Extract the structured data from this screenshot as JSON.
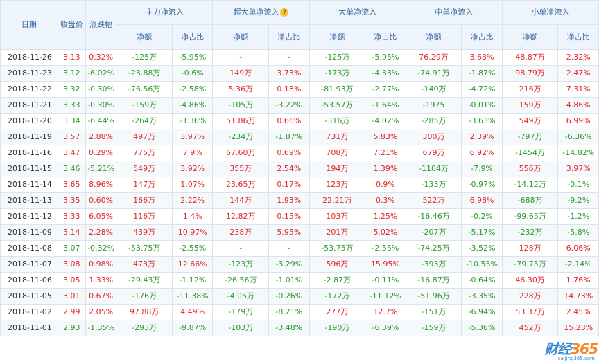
{
  "headers": {
    "date": "日期",
    "close": "收盘价",
    "change": "涨跌幅",
    "groups": [
      "主力净流入",
      "超大单净流入",
      "大单净流入",
      "中单净流入",
      "小单净流入"
    ],
    "amount": "净额",
    "ratio": "净占比",
    "help_glyph": "?"
  },
  "rows": [
    [
      "2018-11-26",
      "3.13",
      "0.32%",
      "-125万",
      "-5.95%",
      "-",
      "-",
      "-125万",
      "-5.95%",
      "76.29万",
      "3.63%",
      "48.87万",
      "2.32%"
    ],
    [
      "2018-11-23",
      "3.12",
      "-6.02%",
      "-23.88万",
      "-0.6%",
      "149万",
      "3.73%",
      "-173万",
      "-4.33%",
      "-74.91万",
      "-1.87%",
      "98.79万",
      "2.47%"
    ],
    [
      "2018-11-22",
      "3.32",
      "-0.30%",
      "-76.56万",
      "-2.58%",
      "5.36万",
      "0.18%",
      "-81.93万",
      "-2.77%",
      "-140万",
      "-4.72%",
      "216万",
      "7.31%"
    ],
    [
      "2018-11-21",
      "3.33",
      "-0.30%",
      "-159万",
      "-4.86%",
      "-105万",
      "-3.22%",
      "-53.57万",
      "-1.64%",
      "-1975",
      "-0.01%",
      "159万",
      "4.86%"
    ],
    [
      "2018-11-20",
      "3.34",
      "-6.44%",
      "-264万",
      "-3.36%",
      "51.86万",
      "0.66%",
      "-316万",
      "-4.02%",
      "-285万",
      "-3.63%",
      "549万",
      "6.99%"
    ],
    [
      "2018-11-19",
      "3.57",
      "2.88%",
      "497万",
      "3.97%",
      "-234万",
      "-1.87%",
      "731万",
      "5.83%",
      "300万",
      "2.39%",
      "-797万",
      "-6.36%"
    ],
    [
      "2018-11-16",
      "3.47",
      "0.29%",
      "775万",
      "7.9%",
      "67.60万",
      "0.69%",
      "708万",
      "7.21%",
      "679万",
      "6.92%",
      "-1454万",
      "-14.82%"
    ],
    [
      "2018-11-15",
      "3.46",
      "-5.21%",
      "549万",
      "3.92%",
      "355万",
      "2.54%",
      "194万",
      "1.39%",
      "-1104万",
      "-7.9%",
      "556万",
      "3.97%"
    ],
    [
      "2018-11-14",
      "3.65",
      "8.96%",
      "147万",
      "1.07%",
      "23.65万",
      "0.17%",
      "123万",
      "0.9%",
      "-133万",
      "-0.97%",
      "-14.12万",
      "-0.1%"
    ],
    [
      "2018-11-13",
      "3.35",
      "0.60%",
      "166万",
      "2.22%",
      "144万",
      "1.93%",
      "22.21万",
      "0.3%",
      "522万",
      "6.98%",
      "-688万",
      "-9.2%"
    ],
    [
      "2018-11-12",
      "3.33",
      "6.05%",
      "116万",
      "1.4%",
      "12.82万",
      "0.15%",
      "103万",
      "1.25%",
      "-16.46万",
      "-0.2%",
      "-99.65万",
      "-1.2%"
    ],
    [
      "2018-11-09",
      "3.14",
      "2.28%",
      "439万",
      "10.97%",
      "238万",
      "5.95%",
      "201万",
      "5.02%",
      "-207万",
      "-5.17%",
      "-232万",
      "-5.8%"
    ],
    [
      "2018-11-08",
      "3.07",
      "-0.32%",
      "-53.75万",
      "-2.55%",
      "-",
      "-",
      "-53.75万",
      "-2.55%",
      "-74.25万",
      "-3.52%",
      "128万",
      "6.06%"
    ],
    [
      "2018-11-07",
      "3.08",
      "0.98%",
      "473万",
      "12.66%",
      "-123万",
      "-3.29%",
      "596万",
      "15.95%",
      "-393万",
      "-10.53%",
      "-79.75万",
      "-2.14%"
    ],
    [
      "2018-11-06",
      "3.05",
      "1.33%",
      "-29.43万",
      "-1.12%",
      "-26.56万",
      "-1.01%",
      "-2.87万",
      "-0.11%",
      "-16.87万",
      "-0.64%",
      "46.30万",
      "1.76%"
    ],
    [
      "2018-11-05",
      "3.01",
      "0.67%",
      "-176万",
      "-11.38%",
      "-4.05万",
      "-0.26%",
      "-172万",
      "-11.12%",
      "-51.96万",
      "-3.35%",
      "228万",
      "14.73%"
    ],
    [
      "2018-11-02",
      "2.99",
      "2.05%",
      "97.88万",
      "4.49%",
      "-179万",
      "-8.21%",
      "277万",
      "12.7%",
      "-151万",
      "-6.94%",
      "53.37万",
      "2.45%"
    ],
    [
      "2018-11-01",
      "2.93",
      "-1.35%",
      "-293万",
      "-9.87%",
      "-103万",
      "-3.48%",
      "-190万",
      "-6.39%",
      "-159万",
      "-5.36%",
      "452万",
      "15.23%"
    ]
  ],
  "colors": {
    "positive": "#e0262b",
    "negative": "#2a9a2a",
    "header_text": "#3a6aa0"
  },
  "logo": {
    "text": "财经",
    "number": "365",
    "sub": "caijing365.com"
  }
}
